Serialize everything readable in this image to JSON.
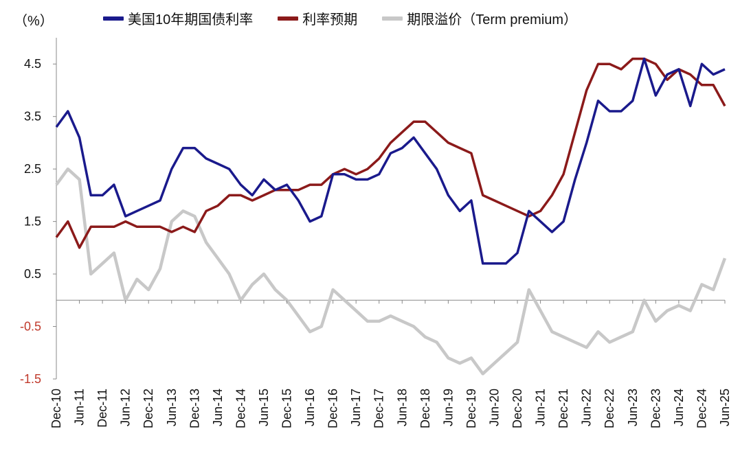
{
  "unit_label": "（%）",
  "colors": {
    "treasury": "#1a1a8c",
    "expectation": "#8b1a1a",
    "term_premium": "#c8c8c8"
  },
  "chart_data": {
    "type": "line",
    "title": "",
    "ylim": [
      -1.5,
      5.0
    ],
    "yticks": [
      {
        "value": 4.5,
        "label": "4.5"
      },
      {
        "value": 3.5,
        "label": "3.5"
      },
      {
        "value": 2.5,
        "label": "2.5"
      },
      {
        "value": 1.5,
        "label": "1.5"
      },
      {
        "value": 0.5,
        "label": "0.5"
      },
      {
        "value": -0.5,
        "label": "-0.5"
      },
      {
        "value": -1.5,
        "label": "-1.5"
      }
    ],
    "xticks": [
      "Dec-10",
      "Jun-11",
      "Dec-11",
      "Jun-12",
      "Dec-12",
      "Jun-13",
      "Dec-13",
      "Jun-14",
      "Dec-14",
      "Jun-15",
      "Dec-15",
      "Jun-16",
      "Dec-16",
      "Jun-17",
      "Dec-17",
      "Jun-18",
      "Dec-18",
      "Jun-19",
      "Dec-19",
      "Jun-20",
      "Dec-20",
      "Jun-21",
      "Dec-21",
      "Jun-22",
      "Dec-22",
      "Jun-23",
      "Dec-23",
      "Jun-24",
      "Dec-24",
      "Jun-25"
    ],
    "legend": [
      {
        "name": "美国10年期国债利率",
        "color": "#1a1a8c"
      },
      {
        "name": "利率预期",
        "color": "#8b1a1a"
      },
      {
        "name": "期限溢价（Term premium）",
        "color": "#c8c8c8"
      }
    ],
    "series": [
      {
        "name": "美国10年期国债利率",
        "color": "#1a1a8c",
        "x": [
          "Dec-10",
          "Mar-11",
          "Jun-11",
          "Sep-11",
          "Dec-11",
          "Mar-12",
          "Jun-12",
          "Sep-12",
          "Dec-12",
          "Mar-13",
          "Jun-13",
          "Sep-13",
          "Dec-13",
          "Mar-14",
          "Jun-14",
          "Sep-14",
          "Dec-14",
          "Mar-15",
          "Jun-15",
          "Sep-15",
          "Dec-15",
          "Mar-16",
          "Jun-16",
          "Sep-16",
          "Dec-16",
          "Mar-17",
          "Jun-17",
          "Sep-17",
          "Dec-17",
          "Mar-18",
          "Jun-18",
          "Sep-18",
          "Dec-18",
          "Mar-19",
          "Jun-19",
          "Sep-19",
          "Dec-19",
          "Mar-20",
          "Jun-20",
          "Sep-20",
          "Dec-20",
          "Mar-21",
          "Jun-21",
          "Sep-21",
          "Dec-21",
          "Mar-22",
          "Jun-22",
          "Sep-22",
          "Dec-22",
          "Mar-23",
          "Jun-23",
          "Sep-23",
          "Dec-23",
          "Mar-24",
          "Jun-24",
          "Sep-24",
          "Dec-24",
          "Mar-25",
          "Jun-25"
        ],
        "values": [
          3.3,
          3.6,
          3.1,
          2.0,
          2.0,
          2.2,
          1.6,
          1.7,
          1.8,
          1.9,
          2.5,
          2.9,
          2.9,
          2.7,
          2.6,
          2.5,
          2.2,
          2.0,
          2.3,
          2.1,
          2.2,
          1.9,
          1.5,
          1.6,
          2.4,
          2.4,
          2.3,
          2.3,
          2.4,
          2.8,
          2.9,
          3.1,
          2.8,
          2.5,
          2.0,
          1.7,
          1.9,
          0.7,
          0.7,
          0.7,
          0.9,
          1.7,
          1.5,
          1.3,
          1.5,
          2.3,
          3.0,
          3.8,
          3.6,
          3.6,
          3.8,
          4.6,
          3.9,
          4.3,
          4.4,
          3.7,
          4.5,
          4.3,
          4.4
        ]
      },
      {
        "name": "利率预期",
        "color": "#8b1a1a",
        "x": [
          "Dec-10",
          "Mar-11",
          "Jun-11",
          "Sep-11",
          "Dec-11",
          "Mar-12",
          "Jun-12",
          "Sep-12",
          "Dec-12",
          "Mar-13",
          "Jun-13",
          "Sep-13",
          "Dec-13",
          "Mar-14",
          "Jun-14",
          "Sep-14",
          "Dec-14",
          "Mar-15",
          "Jun-15",
          "Sep-15",
          "Dec-15",
          "Mar-16",
          "Jun-16",
          "Sep-16",
          "Dec-16",
          "Mar-17",
          "Jun-17",
          "Sep-17",
          "Dec-17",
          "Mar-18",
          "Jun-18",
          "Sep-18",
          "Dec-18",
          "Mar-19",
          "Jun-19",
          "Sep-19",
          "Dec-19",
          "Mar-20",
          "Jun-20",
          "Sep-20",
          "Dec-20",
          "Mar-21",
          "Jun-21",
          "Sep-21",
          "Dec-21",
          "Mar-22",
          "Jun-22",
          "Sep-22",
          "Dec-22",
          "Mar-23",
          "Jun-23",
          "Sep-23",
          "Dec-23",
          "Mar-24",
          "Jun-24",
          "Sep-24",
          "Dec-24",
          "Mar-25",
          "Jun-25"
        ],
        "values": [
          1.2,
          1.5,
          1.0,
          1.4,
          1.4,
          1.4,
          1.5,
          1.4,
          1.4,
          1.4,
          1.3,
          1.4,
          1.3,
          1.7,
          1.8,
          2.0,
          2.0,
          1.9,
          2.0,
          2.1,
          2.1,
          2.1,
          2.2,
          2.2,
          2.4,
          2.5,
          2.4,
          2.5,
          2.7,
          3.0,
          3.2,
          3.4,
          3.4,
          3.2,
          3.0,
          2.9,
          2.8,
          2.0,
          1.9,
          1.8,
          1.7,
          1.6,
          1.7,
          2.0,
          2.4,
          3.2,
          4.0,
          4.5,
          4.5,
          4.4,
          4.6,
          4.6,
          4.5,
          4.2,
          4.4,
          4.3,
          4.1,
          4.1,
          3.7
        ]
      },
      {
        "name": "期限溢价（Term premium）",
        "color": "#c8c8c8",
        "x": [
          "Dec-10",
          "Mar-11",
          "Jun-11",
          "Sep-11",
          "Dec-11",
          "Mar-12",
          "Jun-12",
          "Sep-12",
          "Dec-12",
          "Mar-13",
          "Jun-13",
          "Sep-13",
          "Dec-13",
          "Mar-14",
          "Jun-14",
          "Sep-14",
          "Dec-14",
          "Mar-15",
          "Jun-15",
          "Sep-15",
          "Dec-15",
          "Mar-16",
          "Jun-16",
          "Sep-16",
          "Dec-16",
          "Mar-17",
          "Jun-17",
          "Sep-17",
          "Dec-17",
          "Mar-18",
          "Jun-18",
          "Sep-18",
          "Dec-18",
          "Mar-19",
          "Jun-19",
          "Sep-19",
          "Dec-19",
          "Mar-20",
          "Jun-20",
          "Sep-20",
          "Dec-20",
          "Mar-21",
          "Jun-21",
          "Sep-21",
          "Dec-21",
          "Mar-22",
          "Jun-22",
          "Sep-22",
          "Dec-22",
          "Mar-23",
          "Jun-23",
          "Sep-23",
          "Dec-23",
          "Mar-24",
          "Jun-24",
          "Sep-24",
          "Dec-24",
          "Mar-25",
          "Jun-25"
        ],
        "values": [
          2.2,
          2.5,
          2.3,
          0.5,
          0.7,
          0.9,
          0.0,
          0.4,
          0.2,
          0.6,
          1.5,
          1.7,
          1.6,
          1.1,
          0.8,
          0.5,
          0.0,
          0.3,
          0.5,
          0.2,
          0.0,
          -0.3,
          -0.6,
          -0.5,
          0.2,
          0.0,
          -0.2,
          -0.4,
          -0.4,
          -0.3,
          -0.4,
          -0.5,
          -0.7,
          -0.8,
          -1.1,
          -1.2,
          -1.1,
          -1.4,
          -1.2,
          -1.0,
          -0.8,
          0.2,
          -0.2,
          -0.6,
          -0.7,
          -0.8,
          -0.9,
          -0.6,
          -0.8,
          -0.7,
          -0.6,
          0.0,
          -0.4,
          -0.2,
          -0.1,
          -0.2,
          0.3,
          0.2,
          0.8
        ]
      }
    ]
  }
}
